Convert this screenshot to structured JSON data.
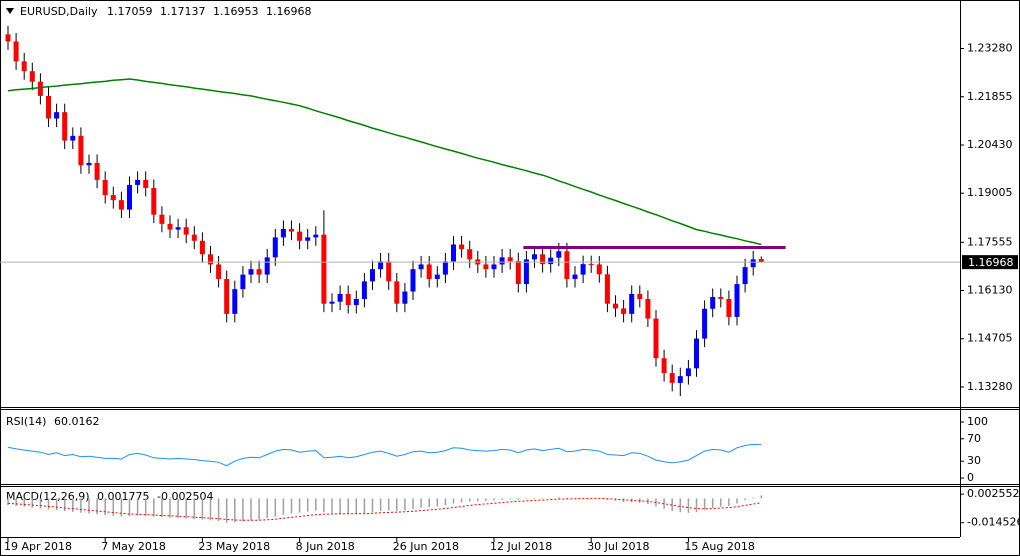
{
  "chart_data": [
    {
      "type": "candlestick",
      "title": "EURUSD,Daily",
      "open": [
        1.237,
        1.2349,
        1.229,
        1.2261,
        1.223,
        1.2188,
        1.2121,
        1.214,
        1.2056,
        1.207,
        1.1983,
        1.199,
        1.194,
        1.1895,
        1.188,
        1.1852,
        1.1925,
        1.194,
        1.1916,
        1.1837,
        1.181,
        1.1793,
        1.18,
        1.1778,
        1.176,
        1.172,
        1.169,
        1.1647,
        1.1544,
        1.1617,
        1.166,
        1.1676,
        1.166,
        1.1711,
        1.177,
        1.1795,
        1.1787,
        1.176,
        1.177,
        1.1778,
        1.1574,
        1.158,
        1.1603,
        1.157,
        1.1588,
        1.164,
        1.1676,
        1.1699,
        1.164,
        1.1574,
        1.161,
        1.1676,
        1.169,
        1.1647,
        1.166,
        1.1699,
        1.1749,
        1.1735,
        1.1705,
        1.169,
        1.1676,
        1.169,
        1.1711,
        1.17,
        1.1632,
        1.1705,
        1.172,
        1.1691,
        1.171,
        1.1729,
        1.1647,
        1.166,
        1.1691,
        1.169,
        1.1661,
        1.1574,
        1.156,
        1.1544,
        1.1603,
        1.1588,
        1.153,
        1.1413,
        1.1369,
        1.134,
        1.136,
        1.1383,
        1.1471,
        1.1559,
        1.1594,
        1.1588,
        1.1535,
        1.1632,
        1.1682,
        1.17059
      ],
      "high": [
        1.2395,
        1.2374,
        1.2315,
        1.2286,
        1.2255,
        1.2213,
        1.2165,
        1.2165,
        1.2095,
        1.2095,
        1.2015,
        1.2015,
        1.1965,
        1.192,
        1.1905,
        1.195,
        1.1965,
        1.1965,
        1.1941,
        1.1862,
        1.1835,
        1.1825,
        1.1825,
        1.1803,
        1.1785,
        1.1745,
        1.1715,
        1.1672,
        1.1642,
        1.1685,
        1.1701,
        1.1701,
        1.1736,
        1.1795,
        1.182,
        1.182,
        1.1812,
        1.1795,
        1.1803,
        1.185,
        1.1605,
        1.1628,
        1.1628,
        1.1613,
        1.1665,
        1.1701,
        1.1724,
        1.1724,
        1.1665,
        1.1635,
        1.1701,
        1.1715,
        1.1715,
        1.1685,
        1.1724,
        1.1774,
        1.1774,
        1.176,
        1.173,
        1.1715,
        1.1715,
        1.1736,
        1.1736,
        1.1725,
        1.173,
        1.1745,
        1.1745,
        1.1735,
        1.1754,
        1.1754,
        1.1685,
        1.1716,
        1.1716,
        1.1715,
        1.1686,
        1.1599,
        1.1585,
        1.1628,
        1.1628,
        1.1613,
        1.1555,
        1.1438,
        1.1394,
        1.1385,
        1.1408,
        1.1496,
        1.1584,
        1.1619,
        1.1619,
        1.1613,
        1.1657,
        1.1707,
        1.173,
        1.17137
      ],
      "low": [
        1.2324,
        1.2265,
        1.2236,
        1.2205,
        1.2163,
        1.2096,
        1.2096,
        1.2031,
        1.2031,
        1.1958,
        1.1958,
        1.1915,
        1.187,
        1.1855,
        1.1827,
        1.1827,
        1.19,
        1.1891,
        1.1812,
        1.1785,
        1.1768,
        1.1768,
        1.1753,
        1.1735,
        1.1695,
        1.1665,
        1.1622,
        1.1519,
        1.1519,
        1.1592,
        1.1635,
        1.1635,
        1.1635,
        1.1686,
        1.1745,
        1.1762,
        1.1735,
        1.1735,
        1.1745,
        1.1549,
        1.1549,
        1.1555,
        1.1545,
        1.1545,
        1.1563,
        1.1615,
        1.1651,
        1.1615,
        1.1549,
        1.1549,
        1.1585,
        1.1651,
        1.1622,
        1.1622,
        1.1635,
        1.1674,
        1.171,
        1.168,
        1.1665,
        1.1651,
        1.1651,
        1.1665,
        1.1675,
        1.1607,
        1.1607,
        1.168,
        1.1666,
        1.1666,
        1.1685,
        1.1622,
        1.1622,
        1.1635,
        1.1665,
        1.1636,
        1.1549,
        1.1535,
        1.1519,
        1.1519,
        1.1563,
        1.1505,
        1.1388,
        1.1344,
        1.1315,
        1.1301,
        1.1335,
        1.1358,
        1.1446,
        1.1534,
        1.1563,
        1.151,
        1.151,
        1.1607,
        1.1657,
        1.16953
      ],
      "close": [
        1.2349,
        1.229,
        1.2261,
        1.223,
        1.2188,
        1.2121,
        1.214,
        1.2056,
        1.207,
        1.1983,
        1.199,
        1.194,
        1.1895,
        1.188,
        1.1852,
        1.1925,
        1.194,
        1.1916,
        1.1837,
        1.181,
        1.1793,
        1.18,
        1.1778,
        1.176,
        1.172,
        1.169,
        1.1647,
        1.1544,
        1.1617,
        1.166,
        1.1676,
        1.166,
        1.1711,
        1.177,
        1.1795,
        1.1787,
        1.176,
        1.177,
        1.1778,
        1.1574,
        1.158,
        1.1603,
        1.157,
        1.1588,
        1.164,
        1.1676,
        1.1699,
        1.164,
        1.1574,
        1.161,
        1.1676,
        1.169,
        1.1647,
        1.166,
        1.1699,
        1.1749,
        1.1735,
        1.1705,
        1.169,
        1.1676,
        1.169,
        1.1711,
        1.17,
        1.1632,
        1.1705,
        1.172,
        1.1691,
        1.171,
        1.1729,
        1.1647,
        1.166,
        1.1691,
        1.169,
        1.1661,
        1.1574,
        1.156,
        1.1544,
        1.1603,
        1.1588,
        1.153,
        1.1413,
        1.1369,
        1.134,
        1.136,
        1.1383,
        1.1471,
        1.1559,
        1.1594,
        1.1588,
        1.1535,
        1.1632,
        1.1682,
        1.1705,
        1.16968
      ],
      "up_color": "#0000ff",
      "down_color": "#ff0000",
      "moving_average": {
        "color": "#008000",
        "values": [
          1.2203,
          1.2206,
          1.2208,
          1.221,
          1.2213,
          1.2215,
          1.2217,
          1.222,
          1.2222,
          1.2224,
          1.2227,
          1.2229,
          1.2231,
          1.2234,
          1.2236,
          1.2238,
          1.2235,
          1.2231,
          1.2228,
          1.2225,
          1.2221,
          1.2218,
          1.2215,
          1.2211,
          1.2208,
          1.2205,
          1.2201,
          1.2198,
          1.2195,
          1.2191,
          1.2188,
          1.2183,
          1.2178,
          1.2174,
          1.2169,
          1.2164,
          1.2159,
          1.2152,
          1.2144,
          1.2137,
          1.213,
          1.2123,
          1.2115,
          1.2108,
          1.2101,
          1.2093,
          1.2086,
          1.2079,
          1.2072,
          1.2066,
          1.2059,
          1.2052,
          1.2045,
          1.2038,
          1.2031,
          1.2025,
          1.2018,
          1.2011,
          1.2004,
          1.1998,
          1.1992,
          1.1985,
          1.1979,
          1.1973,
          1.1967,
          1.196,
          1.1954,
          1.1946,
          1.1937,
          1.1929,
          1.192,
          1.1912,
          1.1904,
          1.1895,
          1.1887,
          1.1879,
          1.187,
          1.1862,
          1.1854,
          1.1845,
          1.1837,
          1.1828,
          1.1819,
          1.1811,
          1.1802,
          1.1793,
          1.1788,
          1.1782,
          1.1777,
          1.1771,
          1.1766,
          1.176,
          1.1755,
          1.1749
        ]
      },
      "hline": {
        "value": 1.174,
        "from": 64,
        "to": 96,
        "color": "#800080"
      },
      "ylim": [
        1.12747,
        1.24655
      ],
      "yticks": [
        {
          "value": 1.2328,
          "label": "1.23280"
        },
        1.21855,
        {
          "value": 1.2043,
          "label": "1.20430"
        },
        1.19005,
        1.17555,
        {
          "value": 1.1613,
          "label": "1.16130"
        },
        1.14705,
        {
          "value": 1.1328,
          "label": "1.13280"
        }
      ]
    },
    {
      "type": "line",
      "title": "RSI(14)",
      "color": "#1e90ff",
      "values": [
        55,
        52,
        50,
        48,
        46,
        42,
        45,
        40,
        42,
        38,
        39,
        37,
        35,
        35,
        34,
        42,
        44,
        41,
        36,
        35,
        34,
        35,
        34,
        33,
        31,
        30,
        28,
        22,
        30,
        35,
        37,
        36,
        42,
        48,
        51,
        50,
        46,
        48,
        49,
        36,
        37,
        39,
        36,
        38,
        42,
        46,
        48,
        44,
        39,
        42,
        47,
        48,
        45,
        46,
        49,
        54,
        53,
        50,
        49,
        48,
        49,
        51,
        50,
        45,
        50,
        52,
        49,
        51,
        53,
        47,
        48,
        51,
        50,
        48,
        42,
        41,
        40,
        45,
        44,
        39,
        32,
        29,
        27,
        29,
        32,
        40,
        48,
        51,
        50,
        46,
        54,
        58,
        60,
        60.0162
      ],
      "ylim": [
        -10.7,
        121.4
      ],
      "yticks": [
        100,
        70,
        30,
        0
      ]
    },
    {
      "type": "bar",
      "title": "MACD(12,26,9)",
      "color": "#a0a0a0",
      "values": [
        -0.004,
        -0.0045,
        -0.005,
        -0.0055,
        -0.006,
        -0.0066,
        -0.007,
        -0.0076,
        -0.008,
        -0.0086,
        -0.009,
        -0.0095,
        -0.01,
        -0.0104,
        -0.0108,
        -0.0106,
        -0.0104,
        -0.0104,
        -0.0108,
        -0.0112,
        -0.0115,
        -0.0117,
        -0.012,
        -0.0123,
        -0.0127,
        -0.0131,
        -0.0136,
        -0.0145,
        -0.0143,
        -0.0138,
        -0.0132,
        -0.0127,
        -0.0118,
        -0.0108,
        -0.0098,
        -0.009,
        -0.0085,
        -0.0079,
        -0.0073,
        -0.0083,
        -0.0088,
        -0.009,
        -0.0092,
        -0.0092,
        -0.0088,
        -0.0082,
        -0.0075,
        -0.0073,
        -0.0074,
        -0.0072,
        -0.0064,
        -0.0056,
        -0.0052,
        -0.0047,
        -0.004,
        -0.003,
        -0.0023,
        -0.0019,
        -0.0016,
        -0.0015,
        -0.0012,
        -0.0008,
        -0.0006,
        -0.0008,
        -0.0004,
        0.0,
        0.0001,
        0.0003,
        0.0006,
        0.0002,
        0.0,
        0.0001,
        0.0002,
        0.0,
        -0.0008,
        -0.0015,
        -0.0022,
        -0.0024,
        -0.0027,
        -0.0034,
        -0.0048,
        -0.0062,
        -0.0075,
        -0.0082,
        -0.0086,
        -0.0082,
        -0.007,
        -0.0058,
        -0.005,
        -0.0046,
        -0.003,
        -0.001,
        0.0005,
        0.001775
      ],
      "signal": {
        "color": "#ff0000",
        "values": [
          -0.003,
          -0.0033,
          -0.0036,
          -0.004,
          -0.0043,
          -0.0048,
          -0.0052,
          -0.0057,
          -0.0061,
          -0.0066,
          -0.0071,
          -0.0075,
          -0.008,
          -0.0085,
          -0.0089,
          -0.0093,
          -0.0095,
          -0.0097,
          -0.0099,
          -0.0102,
          -0.0104,
          -0.0107,
          -0.0109,
          -0.0112,
          -0.0115,
          -0.0118,
          -0.0121,
          -0.0126,
          -0.0129,
          -0.0131,
          -0.0131,
          -0.013,
          -0.0128,
          -0.0124,
          -0.0119,
          -0.0113,
          -0.0108,
          -0.0102,
          -0.0097,
          -0.0094,
          -0.0093,
          -0.0092,
          -0.0092,
          -0.0092,
          -0.0091,
          -0.0089,
          -0.0086,
          -0.0084,
          -0.0082,
          -0.008,
          -0.0077,
          -0.0073,
          -0.0069,
          -0.0065,
          -0.006,
          -0.0054,
          -0.0048,
          -0.0042,
          -0.0037,
          -0.0033,
          -0.0029,
          -0.0025,
          -0.0021,
          -0.0018,
          -0.0015,
          -0.0012,
          -0.001,
          -0.0007,
          -0.0004,
          -0.0003,
          -0.0002,
          -0.0001,
          0.0,
          0.0,
          -0.0002,
          -0.0004,
          -0.0008,
          -0.0011,
          -0.0014,
          -0.0018,
          -0.0024,
          -0.0032,
          -0.004,
          -0.0048,
          -0.0055,
          -0.006,
          -0.0062,
          -0.0061,
          -0.0058,
          -0.0055,
          -0.005,
          -0.0042,
          -0.0034,
          -0.002504
        ]
      },
      "ylim": [
        -0.02245,
        0.00682
      ],
      "yticks": [
        0.002552,
        -0.014526
      ],
      "xticks": [
        {
          "value": 0,
          "label": "19 Apr 2018"
        },
        {
          "value": 12,
          "label": "7 May 2018"
        },
        {
          "value": 24,
          "label": "23 May 2018"
        },
        {
          "value": 36,
          "label": "8 Jun 2018"
        },
        {
          "value": 48,
          "label": "26 Jun 2018"
        },
        {
          "value": 60,
          "label": "12 Jul 2018"
        },
        {
          "value": 72,
          "label": "30 Jul 2018"
        },
        {
          "value": 84,
          "label": "15 Aug 2018"
        }
      ]
    }
  ]
}
